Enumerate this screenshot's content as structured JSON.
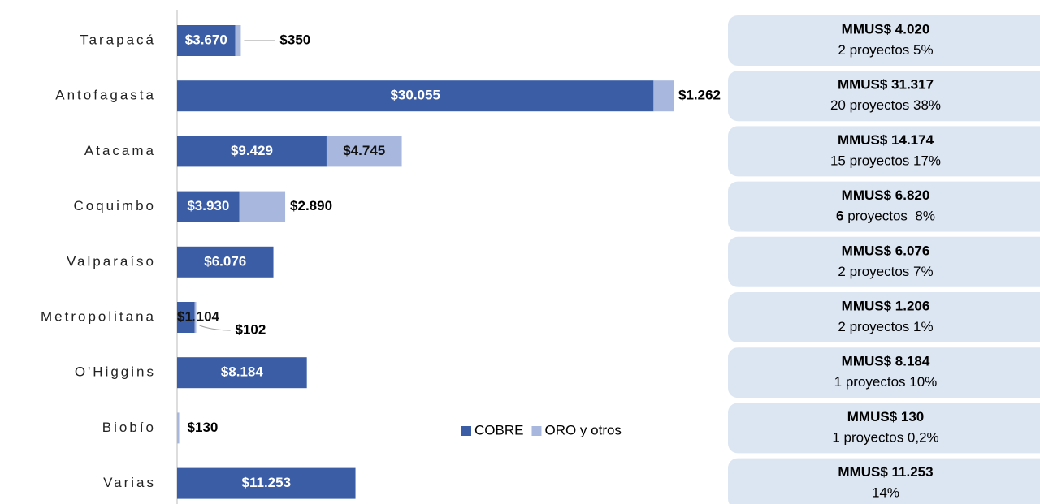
{
  "chart_data": {
    "type": "bar",
    "stacked": true,
    "orientation": "horizontal",
    "categories": [
      "Tarapacá",
      "Antofagasta",
      "Atacama",
      "Coquimbo",
      "Valparaíso",
      "Metropolitana",
      "O'Higgins",
      "Biobío",
      "Varias"
    ],
    "series": [
      {
        "name": "COBRE",
        "color": "#3a5da6",
        "values": [
          3670,
          30055,
          9429,
          3930,
          6076,
          1104,
          8184,
          null,
          11253
        ],
        "value_labels": [
          "$3.670",
          "$30.055",
          "$9.429",
          "$3.930",
          "$6.076",
          "$1.104",
          "$8.184",
          null,
          "$11.253"
        ]
      },
      {
        "name": "ORO y otros",
        "color": "#a8b7de",
        "values": [
          350,
          1262,
          4745,
          2890,
          null,
          102,
          null,
          130,
          null
        ],
        "value_labels": [
          "$350",
          "$1.262",
          "$4.745",
          "$2.890",
          null,
          "$102",
          null,
          "$130",
          null
        ]
      }
    ],
    "summaries": [
      {
        "title": "MMUS$ 4.020",
        "detail": "2 proyectos 5%"
      },
      {
        "title": "MMUS$ 31.317",
        "detail": "20 proyectos 38%"
      },
      {
        "title": "MMUS$ 14.174",
        "detail": "15 proyectos 17%"
      },
      {
        "title": "MMUS$ 6.820",
        "count": "6",
        "detail": " proyectos  8%"
      },
      {
        "title": "MMUS$ 6.076",
        "detail": "2 proyectos 7%"
      },
      {
        "title": "MMUS$ 1.206",
        "detail": "2 proyectos 1%"
      },
      {
        "title": "MMUS$ 8.184",
        "detail": "1 proyectos 10%"
      },
      {
        "title": "MMUS$ 130",
        "detail": "1 proyectos 0,2%"
      },
      {
        "title": "MMUS$ 11.253",
        "detail": "14%"
      }
    ]
  }
}
